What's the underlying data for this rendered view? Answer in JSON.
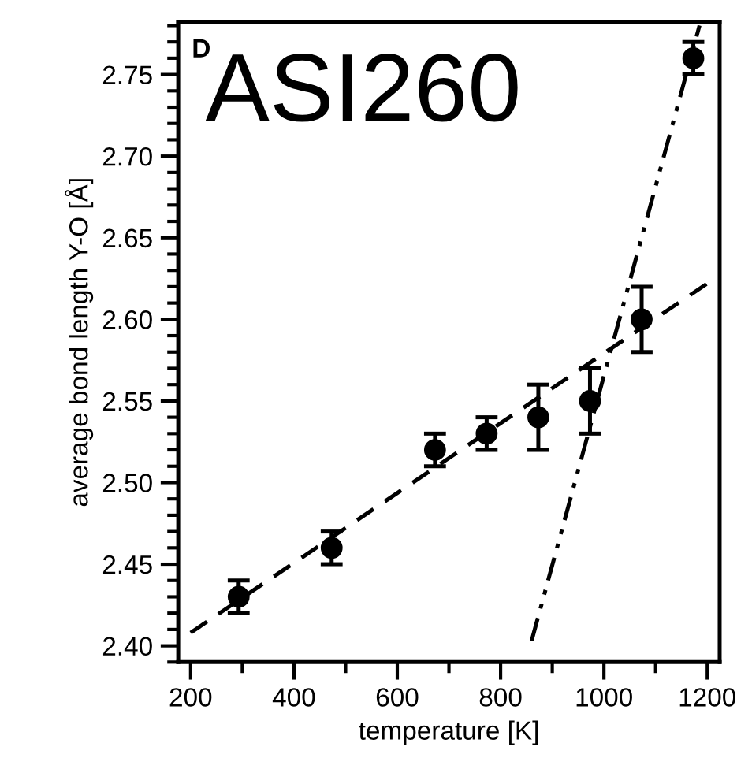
{
  "chart_data": {
    "type": "scatter",
    "xlabel": "temperature [K]",
    "ylabel": "average bond length Y-O [Å]",
    "annotations": [
      "D",
      "ASI260"
    ],
    "xlim": [
      176,
      1224
    ],
    "xticks": [
      200,
      400,
      600,
      800,
      1000,
      {
        "value": 1200,
        "label": "1200"
      }
    ],
    "ylim": [
      2.39,
      2.782
    ],
    "yticks": [
      {
        "value": 2.4,
        "label": "2.40"
      },
      2.45,
      {
        "value": 2.5,
        "label": "2.50"
      },
      2.55,
      {
        "value": 2.6,
        "label": "2.60"
      },
      2.65,
      {
        "value": 2.7,
        "label": "2.70"
      },
      2.75
    ],
    "grid": false,
    "legend": false,
    "series": [
      {
        "color": "#000000",
        "marker": "circle",
        "x": [
          293,
          473,
          673,
          773,
          873,
          973,
          1073,
          1173
        ],
        "values": [
          2.43,
          2.46,
          2.52,
          2.53,
          2.54,
          2.55,
          2.6,
          2.76
        ],
        "errors": [
          0.01,
          0.01,
          0.01,
          0.01,
          0.02,
          0.02,
          0.02,
          0.01
        ]
      },
      {
        "type": "line",
        "color": "#000000",
        "line_style": "dashed",
        "x": [
          200,
          1200
        ],
        "values": [
          2.408,
          2.622
        ]
      },
      {
        "type": "line",
        "color": "#000000",
        "line_style": "dashdot",
        "x": [
          860,
          1185
        ],
        "values": [
          2.403,
          2.78
        ]
      }
    ]
  }
}
